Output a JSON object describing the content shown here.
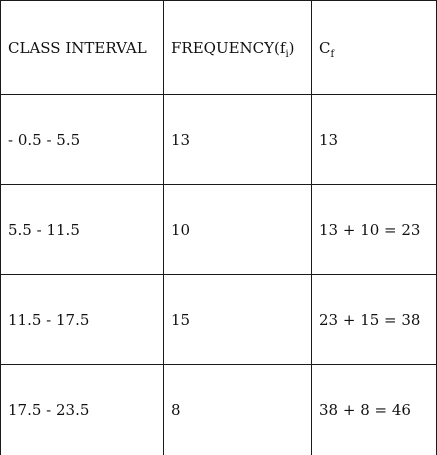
{
  "table": {
    "headers": {
      "class_interval": "CLASS INTERVAL",
      "frequency": "FREQUENCY(f",
      "frequency_sub": "i",
      "frequency_close": ")",
      "cf": "C",
      "cf_sub": "f"
    },
    "rows": [
      {
        "interval": "- 0.5 - 5.5",
        "frequency": "13",
        "cf": "13"
      },
      {
        "interval": "5.5 - 11.5",
        "frequency": "10",
        "cf": "13 + 10 = 23"
      },
      {
        "interval": "11.5 - 17.5",
        "frequency": "15",
        "cf": "23 + 15 = 38"
      },
      {
        "interval": "17.5 - 23.5",
        "frequency": "8",
        "cf": "38 + 8 = 46"
      }
    ]
  }
}
